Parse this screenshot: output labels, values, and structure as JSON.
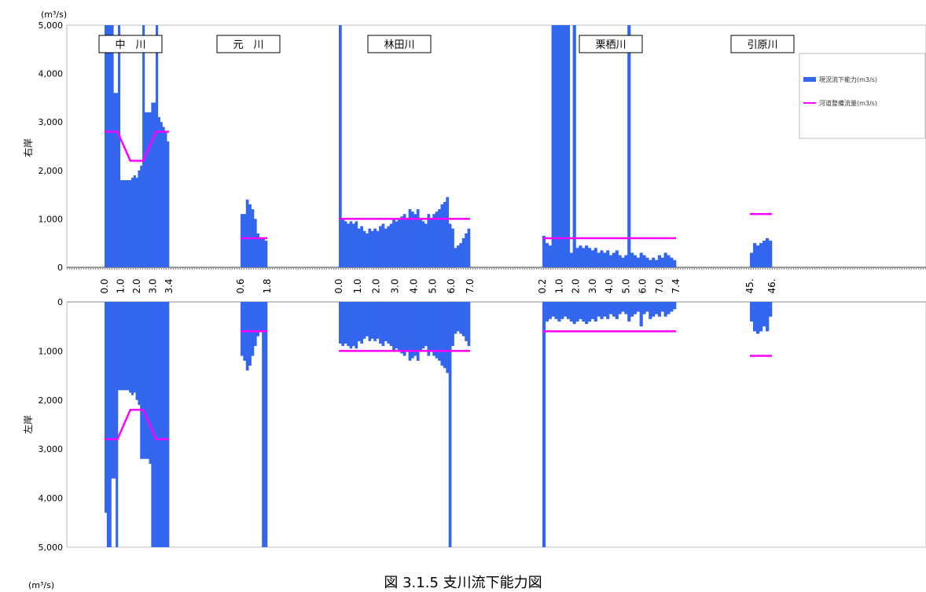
{
  "chart_data": {
    "type": "bar",
    "title": "",
    "caption": "図 3.1.5 支川流下能力図",
    "unit_top": "(m³/s)",
    "unit_bottom": "(m³/s)",
    "ylabel_top": "右岸",
    "ylabel_bottom": "左岸",
    "ylim": [
      0,
      5000
    ],
    "y_ticks_top": [
      "0",
      "1,000",
      "2,000",
      "3,000",
      "4,000",
      "5,000"
    ],
    "y_ticks_bottom": [
      "0",
      "1,000",
      "2,000",
      "3,000",
      "4,000",
      "5,000"
    ],
    "colors": {
      "capacity": "#3366ee",
      "design": "#ff00ff"
    },
    "legend": {
      "position": "top-right",
      "entries": [
        {
          "label": "現況流下能力(m3/s)",
          "color": "#3366ee",
          "kind": "bar"
        },
        {
          "label": "河道整備流量(m3/s)",
          "color": "#ff00ff",
          "kind": "line"
        }
      ]
    },
    "rivers": [
      {
        "name": "中　川",
        "km_labels": [
          "0.0",
          "1.0",
          "2.0",
          "3.0",
          "3.4"
        ],
        "right_bank": [
          5000,
          5000,
          5000,
          5000,
          3600,
          3600,
          5000,
          1800,
          1800,
          1800,
          1800,
          1800,
          1850,
          1900,
          1850,
          2000,
          2100,
          5000,
          3200,
          3200,
          3200,
          3400,
          3400,
          5000,
          3100,
          3000,
          2900,
          2800,
          2600
        ],
        "left_bank": [
          4300,
          5000,
          5000,
          3600,
          3600,
          5000,
          1800,
          1800,
          1800,
          1800,
          1800,
          1850,
          1900,
          1850,
          2000,
          2100,
          3200,
          3200,
          3200,
          3200,
          3300,
          5000,
          5000,
          5000,
          5000,
          5000,
          5000,
          5000,
          5000
        ],
        "design": {
          "right": [
            2800,
            2800,
            2200,
            2200,
            2800,
            2800
          ],
          "left": [
            2800,
            2800,
            2200,
            2200,
            2800,
            2800
          ]
        }
      },
      {
        "name": "元　川",
        "km_labels": [
          "0.6",
          "1.8"
        ],
        "right_bank": [
          1100,
          1100,
          1400,
          1300,
          1200,
          1000,
          700,
          600,
          600,
          550
        ],
        "left_bank": [
          1100,
          1200,
          1400,
          1300,
          1100,
          900,
          700,
          600,
          5000,
          5000
        ],
        "design": {
          "right": [
            600,
            600
          ],
          "left": [
            600,
            600
          ]
        }
      },
      {
        "name": "林田川",
        "km_labels": [
          "0.0",
          "1.0",
          "2.0",
          "3.0",
          "4.0",
          "5.0",
          "6.0",
          "7.0"
        ],
        "right_bank": [
          5000,
          1000,
          950,
          900,
          950,
          900,
          950,
          800,
          850,
          750,
          700,
          800,
          750,
          800,
          750,
          850,
          900,
          800,
          850,
          900,
          1000,
          950,
          1000,
          1050,
          1100,
          1000,
          1200,
          1150,
          1100,
          1200,
          1000,
          950,
          900,
          1100,
          1000,
          1100,
          1150,
          1200,
          1300,
          1350,
          1450,
          900,
          800,
          400,
          450,
          500,
          600,
          700,
          800
        ],
        "left_bank": [
          850,
          900,
          850,
          900,
          950,
          900,
          950,
          800,
          850,
          750,
          700,
          800,
          750,
          800,
          750,
          850,
          900,
          800,
          850,
          900,
          1000,
          950,
          1000,
          1050,
          1100,
          1000,
          1200,
          1150,
          1100,
          1200,
          1000,
          950,
          900,
          1100,
          1000,
          1100,
          1150,
          1200,
          1300,
          1350,
          1450,
          5000,
          900,
          650,
          600,
          650,
          700,
          800,
          900
        ],
        "design": {
          "right": [
            1000,
            1000
          ],
          "left": [
            1000,
            1000
          ]
        }
      },
      {
        "name": "栗栖川",
        "km_labels": [
          "0.2",
          "1.0",
          "2.0",
          "3.0",
          "4.0",
          "5.0",
          "6.0",
          "7.0",
          "7.4"
        ],
        "right_bank": [
          650,
          500,
          450,
          5000,
          5000,
          5000,
          5000,
          5000,
          5000,
          300,
          5000,
          400,
          450,
          400,
          450,
          400,
          350,
          400,
          300,
          350,
          300,
          350,
          250,
          300,
          350,
          250,
          200,
          250,
          5000,
          300,
          250,
          200,
          300,
          250,
          200,
          150,
          200,
          150,
          250,
          200,
          300,
          250,
          200,
          150
        ],
        "left_bank": [
          5000,
          400,
          350,
          300,
          350,
          400,
          350,
          300,
          350,
          400,
          450,
          400,
          350,
          400,
          450,
          400,
          350,
          400,
          300,
          350,
          300,
          350,
          250,
          300,
          350,
          250,
          200,
          250,
          400,
          300,
          250,
          200,
          500,
          250,
          200,
          350,
          300,
          250,
          300,
          200,
          300,
          250,
          200,
          150
        ],
        "design": {
          "right": [
            600,
            600
          ],
          "left": [
            600,
            600
          ]
        }
      },
      {
        "name": "引原川",
        "km_labels": [
          "45.",
          "46."
        ],
        "right_bank": [
          300,
          500,
          450,
          500,
          550,
          600,
          550
        ],
        "left_bank": [
          400,
          600,
          650,
          600,
          500,
          600,
          300
        ],
        "design": {
          "right": [
            1100,
            1100
          ],
          "left": [
            1100,
            1100
          ]
        }
      }
    ]
  }
}
